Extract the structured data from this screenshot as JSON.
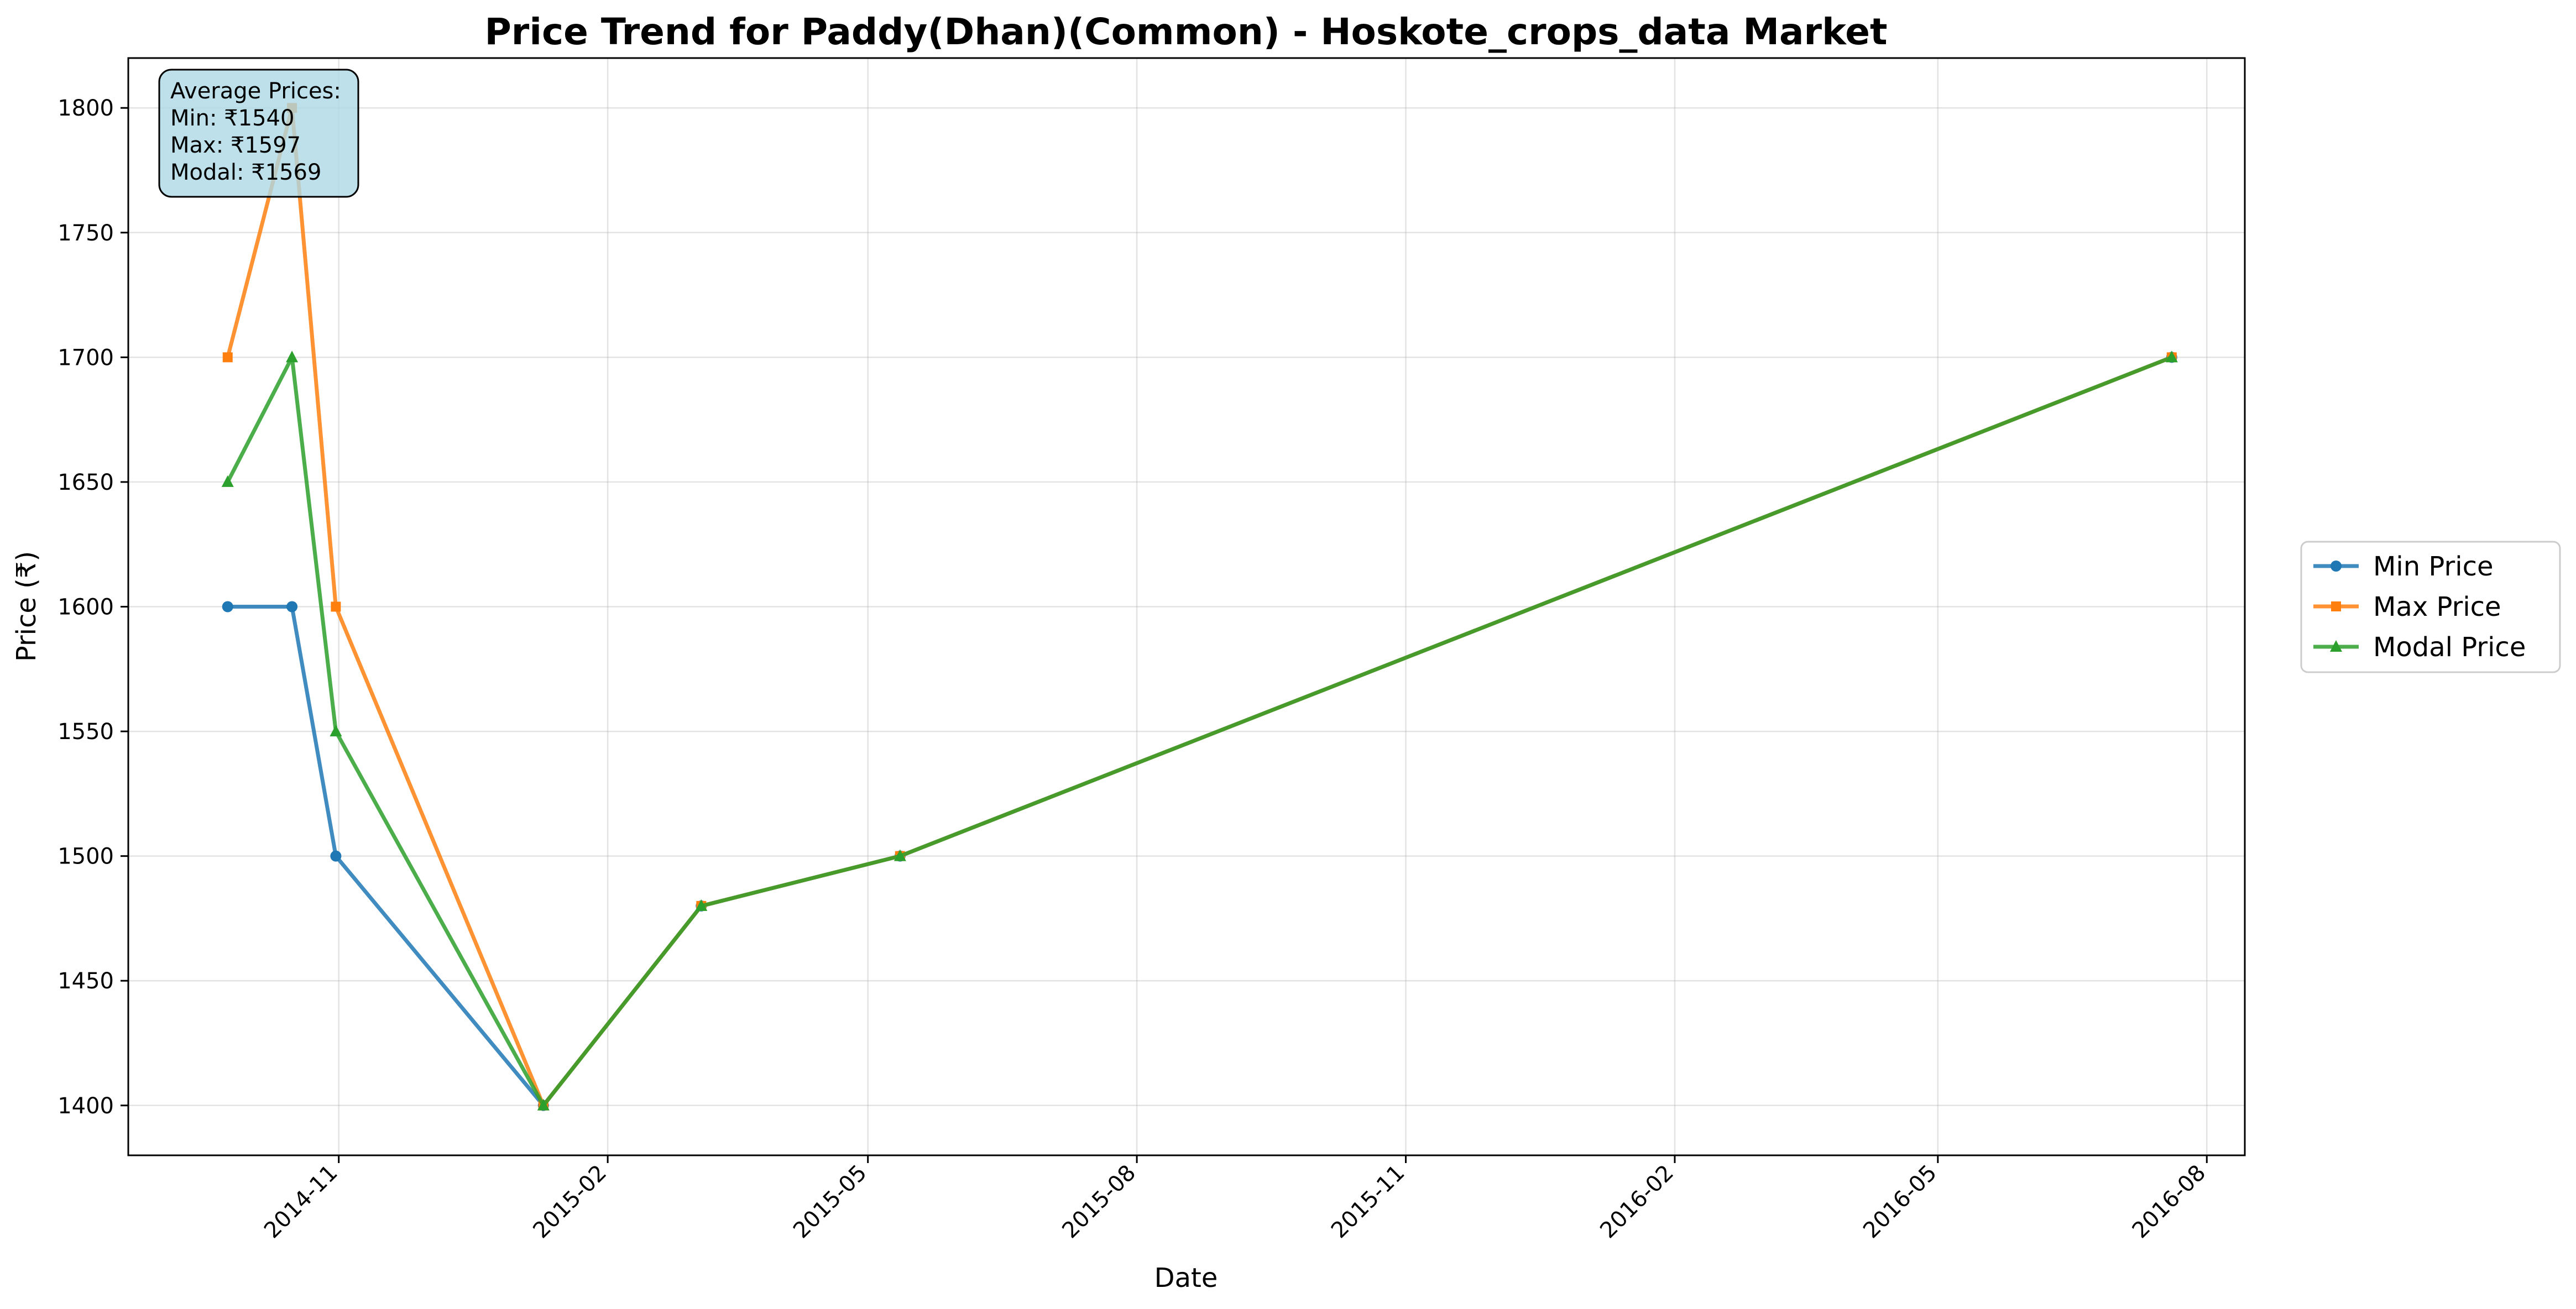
{
  "chart_data": {
    "type": "line",
    "title": "Price Trend for Paddy(Dhan)(Common) - Hoskote_crops_data Market",
    "xlabel": "Date",
    "ylabel": "Price (₹)",
    "x": [
      "2014-09-24",
      "2014-10-16",
      "2014-10-31",
      "2015-01-10",
      "2015-03-05",
      "2015-05-12",
      "2016-07-20"
    ],
    "xlim": [
      "2014-08-21",
      "2016-08-14"
    ],
    "ylim": [
      1380,
      1820
    ],
    "x_ticks": [
      "2014-11",
      "2015-02",
      "2015-05",
      "2015-08",
      "2015-11",
      "2016-02",
      "2016-05",
      "2016-08"
    ],
    "y_ticks": [
      1400,
      1450,
      1500,
      1550,
      1600,
      1650,
      1700,
      1750,
      1800
    ],
    "grid": true,
    "legend_position": "right-outside",
    "series": [
      {
        "name": "Min Price",
        "color": "#1f77b4",
        "marker": "circle",
        "values": [
          1600,
          1600,
          1500,
          1400,
          1480,
          1500,
          1700
        ]
      },
      {
        "name": "Max Price",
        "color": "#ff7f0e",
        "marker": "square",
        "values": [
          1700,
          1800,
          1600,
          1400,
          1480,
          1500,
          1700
        ]
      },
      {
        "name": "Modal Price",
        "color": "#2ca02c",
        "marker": "triangle",
        "values": [
          1650,
          1700,
          1550,
          1400,
          1480,
          1500,
          1700
        ]
      }
    ],
    "annotation": {
      "lines": [
        "Average Prices:",
        "Min: ₹1540",
        "Max: ₹1597",
        "Modal: ₹1569"
      ],
      "background": "#add8e6"
    }
  }
}
